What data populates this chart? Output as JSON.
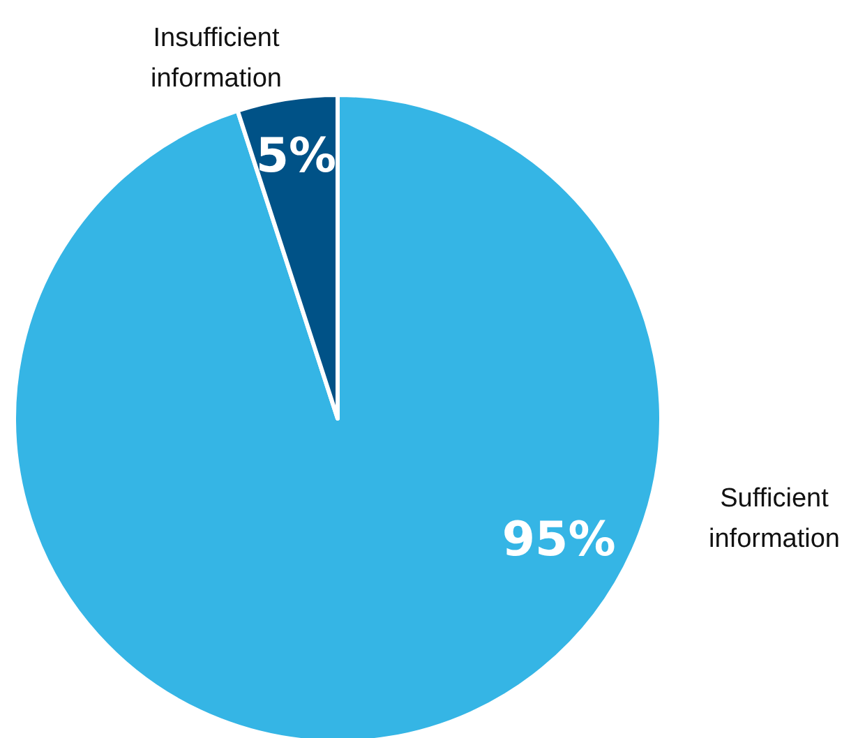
{
  "chart_data": {
    "type": "pie",
    "categories": [
      "Sufficient information",
      "Insufficient information"
    ],
    "values": [
      95,
      5
    ],
    "colors": [
      "#35b5e5",
      "#005287"
    ],
    "value_labels": [
      "95%",
      "5%"
    ],
    "legend": false
  }
}
